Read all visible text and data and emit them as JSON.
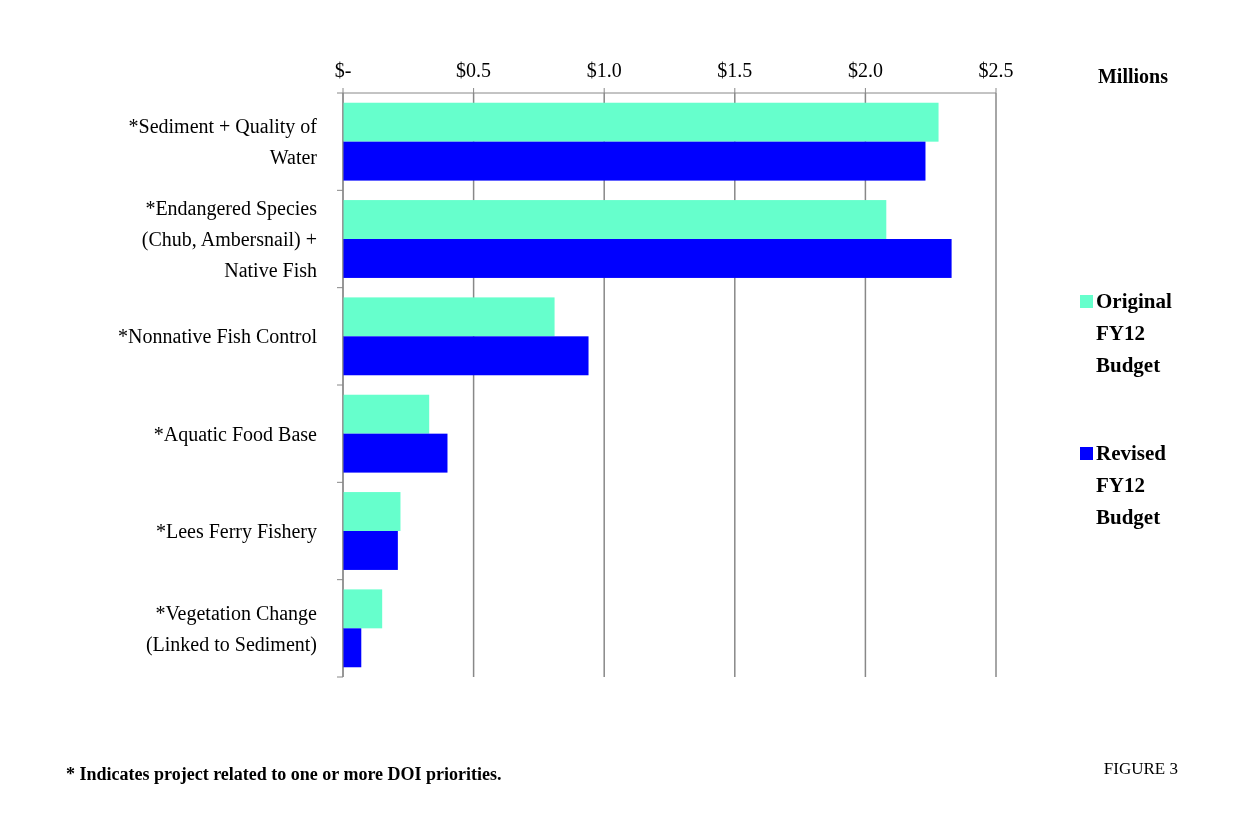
{
  "chart_data": {
    "type": "bar",
    "orientation": "horizontal",
    "xlabel": "Millions",
    "categories": [
      "*Sediment + Quality of Water",
      "*Endangered Species (Chub, Ambersnail) + Native Fish",
      "*Nonnative Fish Control",
      "*Aquatic Food Base",
      "*Lees Ferry Fishery",
      "*Vegetation Change (Linked to Sediment)"
    ],
    "series": [
      {
        "name": "Original FY12 Budget",
        "color": "#66ffcc",
        "values": [
          2.28,
          2.08,
          0.81,
          0.33,
          0.22,
          0.15
        ]
      },
      {
        "name": "Revised FY12 Budget",
        "color": "#0000ff",
        "values": [
          2.23,
          2.33,
          0.94,
          0.4,
          0.21,
          0.07
        ]
      }
    ],
    "xlim": [
      0,
      2.5
    ],
    "xticks": [
      {
        "value": 0,
        "label": "$-"
      },
      {
        "value": 0.5,
        "label": "$0.5"
      },
      {
        "value": 1,
        "label": "$1.0"
      },
      {
        "value": 1.5,
        "label": "$1.5"
      },
      {
        "value": 2,
        "label": "$2.0"
      },
      {
        "value": 2.5,
        "label": "$2.5"
      }
    ],
    "grid": "x",
    "legend": "right",
    "annotations": [
      "* Indicates project related to one or more DOI priorities.",
      "FIGURE 3"
    ]
  }
}
